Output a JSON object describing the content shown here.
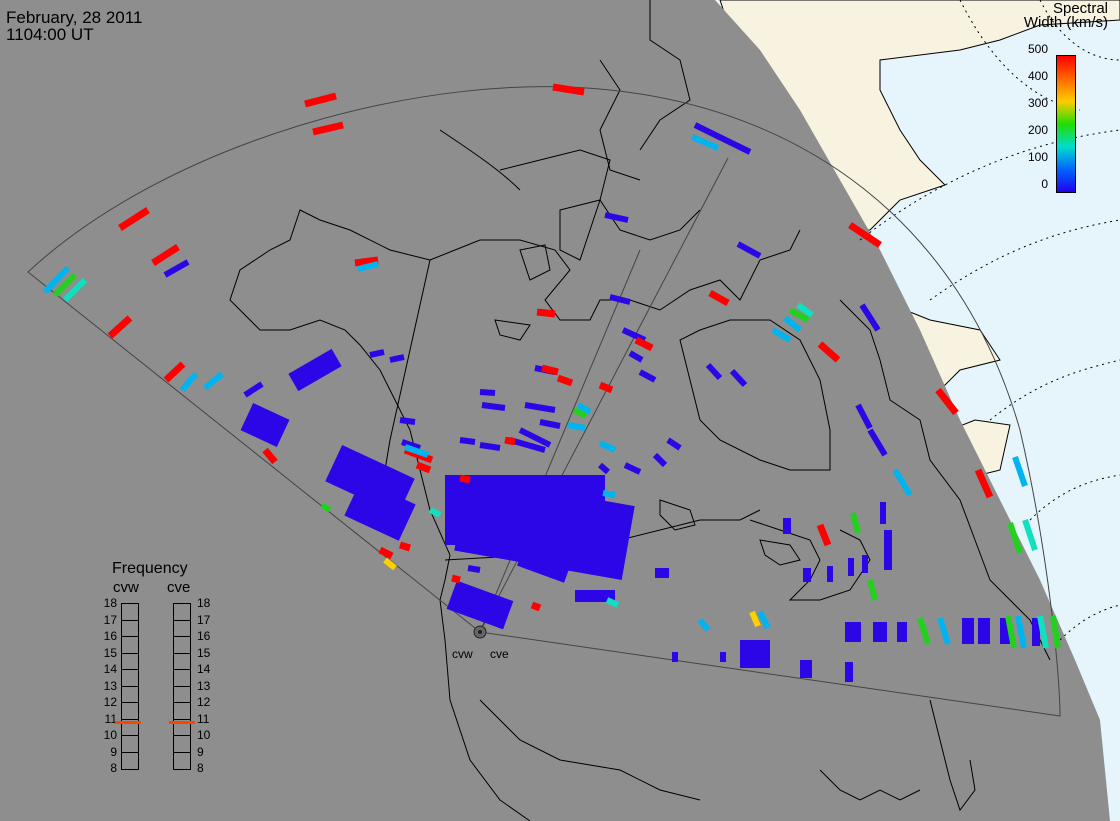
{
  "header": {
    "date": "February, 28 2011",
    "time": "1104:00 UT"
  },
  "colorbar": {
    "title_line1": "Spectral",
    "title_line2": "Width (km/s)",
    "ticks": [
      "500",
      "400",
      "300",
      "200",
      "100",
      "0"
    ],
    "colors": [
      "#ff0000",
      "#ff6600",
      "#ffcc00",
      "#22dd00",
      "#00ddcc",
      "#0066ff",
      "#2200ee"
    ]
  },
  "radars": {
    "west": "cvw",
    "east": "cve"
  },
  "frequency": {
    "title": "Frequency",
    "west_label": "cvw",
    "east_label": "cve",
    "levels": [
      "18",
      "17",
      "16",
      "15",
      "14",
      "13",
      "12",
      "11",
      "10",
      "9",
      "8"
    ],
    "west_value_mhz": 10.8,
    "east_value_mhz": 10.8,
    "marker_color": "#ff4400"
  },
  "colors": {
    "night": "#8e8e8e",
    "ocean": "#e6f4fb",
    "land_day": "#f7f3e0",
    "scatter_blue": "#2c06e6"
  }
}
